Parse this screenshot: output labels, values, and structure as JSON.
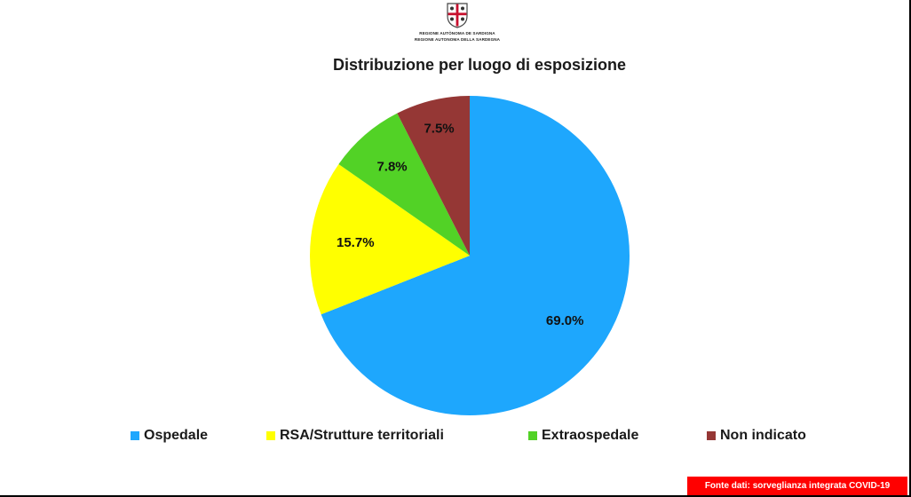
{
  "header": {
    "logo_line_1": "REGIONE AUTÒNOMA DE SARDIGNA",
    "logo_line_2": "REGIONE AUTONOMA DELLA SARDEGNA"
  },
  "chart_data": {
    "type": "pie",
    "title": "Distribuzione per luogo di esposizione",
    "legend_position": "bottom",
    "slices": [
      {
        "name": "Ospedale",
        "value": 69.0,
        "label": "69.0%",
        "color": "#1ea7fd"
      },
      {
        "name": "RSA/Strutture territoriali",
        "value": 15.7,
        "label": "15.7%",
        "color": "#ffff00"
      },
      {
        "name": "Extraospedale",
        "value": 7.8,
        "label": "7.8%",
        "color": "#52d226"
      },
      {
        "name": "Non indicato",
        "value": 7.5,
        "label": "7.5%",
        "color": "#953735"
      }
    ]
  },
  "footer": {
    "source": "Fonte dati: sorveglianza integrata COVID-19"
  }
}
